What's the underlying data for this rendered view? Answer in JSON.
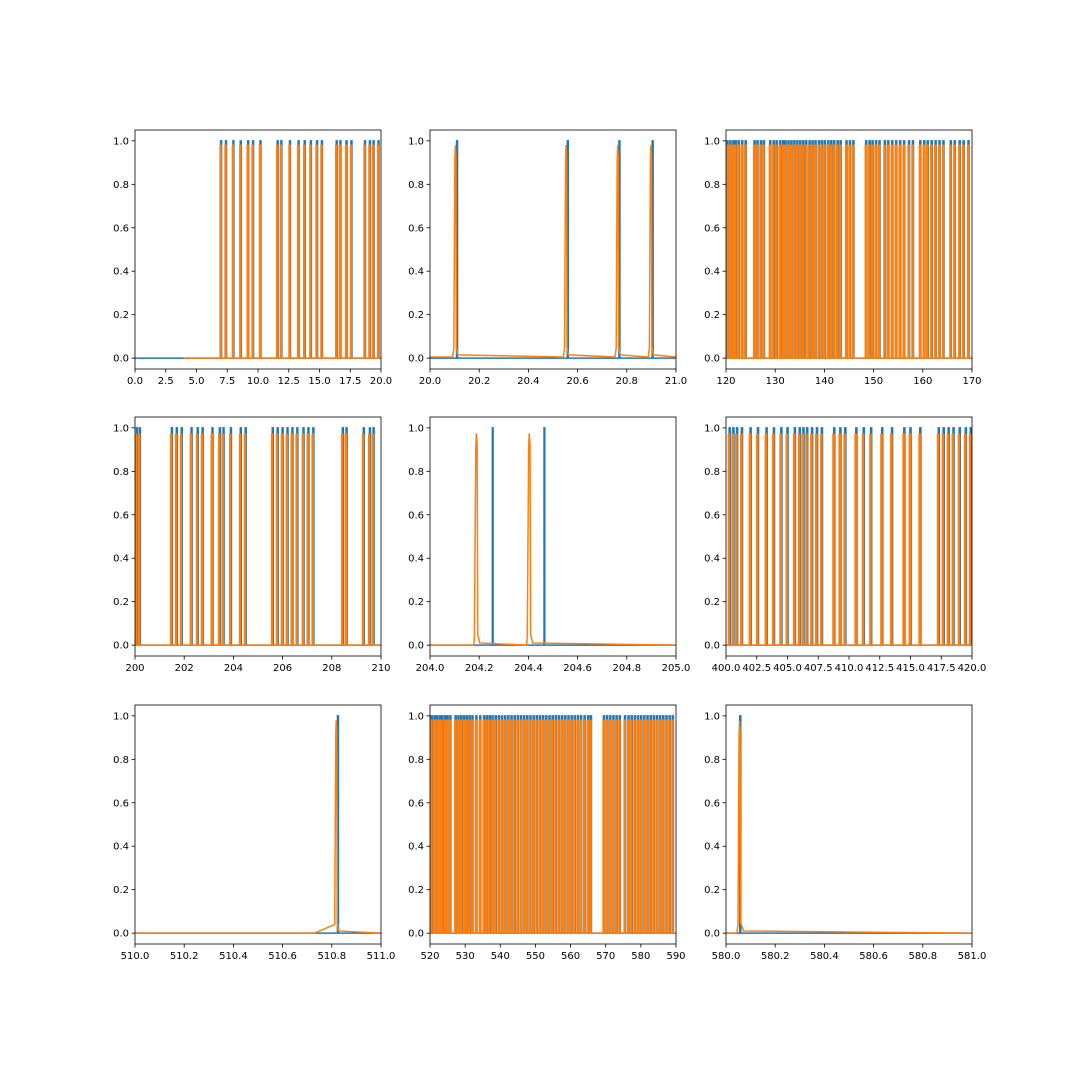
{
  "figure": {
    "series_colors": [
      "#1f77b4",
      "#ff7f0e"
    ]
  },
  "chart_data": [
    {
      "type": "line",
      "xlim": [
        0,
        20
      ],
      "ylim": [
        -0.05,
        1.05
      ],
      "x_ticks": [
        "0.0",
        "2.5",
        "5.0",
        "7.5",
        "10.0",
        "12.5",
        "15.0",
        "17.5",
        "20.0"
      ],
      "x_tick_values": [
        0,
        2.5,
        5,
        7.5,
        10,
        12.5,
        15,
        17.5,
        20
      ],
      "y_ticks": [
        "0.0",
        "0.2",
        "0.4",
        "0.6",
        "0.8",
        "1.0"
      ],
      "y_tick_values": [
        0,
        0.2,
        0.4,
        0.6,
        0.8,
        1.0
      ],
      "series": [
        {
          "color": "#1f77b4",
          "baseline": 0.0,
          "baseline_start": 0,
          "peak_height": 1.0,
          "peak_width": 0.08,
          "peaks": [
            7.0,
            7.4,
            8.0,
            8.6,
            9.2,
            9.6,
            10.2,
            11.6,
            11.9,
            12.6,
            13.3,
            13.8,
            14.3,
            14.8,
            15.2,
            16.4,
            16.7,
            17.2,
            17.6,
            18.7,
            19.1,
            19.4,
            19.8
          ]
        },
        {
          "color": "#ff7f0e",
          "baseline": 0.0,
          "baseline_start": 4.0,
          "peak_height": 0.98,
          "peak_width": 0.08,
          "peak_offset": -0.04,
          "peaks": [
            7.0,
            7.4,
            8.0,
            8.6,
            9.2,
            9.6,
            10.2,
            11.6,
            11.9,
            12.6,
            13.3,
            13.8,
            14.3,
            14.8,
            15.2,
            16.4,
            16.7,
            17.2,
            17.6,
            18.7,
            19.1,
            19.4,
            19.8
          ]
        }
      ]
    },
    {
      "type": "line",
      "xlim": [
        20.0,
        21.0
      ],
      "ylim": [
        -0.05,
        1.05
      ],
      "x_ticks": [
        "20.0",
        "20.2",
        "20.4",
        "20.6",
        "20.8",
        "21.0"
      ],
      "x_tick_values": [
        20.0,
        20.2,
        20.4,
        20.6,
        20.8,
        21.0
      ],
      "y_ticks": [
        "0.0",
        "0.2",
        "0.4",
        "0.6",
        "0.8",
        "1.0"
      ],
      "y_tick_values": [
        0,
        0.2,
        0.4,
        0.6,
        0.8,
        1.0
      ],
      "series": [
        {
          "color": "#1f77b4",
          "baseline": 0.0,
          "baseline_start": 20.0,
          "peak_height": 1.0,
          "peak_width": 0.004,
          "peaks": [
            20.11,
            20.56,
            20.77,
            20.905
          ]
        },
        {
          "color": "#ff7f0e",
          "baseline": 0.005,
          "baseline_start": 20.0,
          "peak_height": 0.98,
          "peak_width": 0.006,
          "peak_offset": -0.006,
          "skirt": true,
          "peaks": [
            20.11,
            20.56,
            20.77,
            20.905
          ]
        }
      ]
    },
    {
      "type": "line",
      "xlim": [
        120,
        170
      ],
      "ylim": [
        -0.05,
        1.05
      ],
      "x_ticks": [
        "120",
        "130",
        "140",
        "150",
        "160",
        "170"
      ],
      "x_tick_values": [
        120,
        130,
        140,
        150,
        160,
        170
      ],
      "y_ticks": [
        "0.0",
        "0.2",
        "0.4",
        "0.6",
        "0.8",
        "1.0"
      ],
      "y_tick_values": [
        0,
        0.2,
        0.4,
        0.6,
        0.8,
        1.0
      ],
      "series": [
        {
          "color": "#1f77b4",
          "baseline": 0.0,
          "baseline_start": 120,
          "peak_height": 1.0,
          "peak_width": 0.22,
          "peaks": [
            120.3,
            120.9,
            121.5,
            122.0,
            122.6,
            123.3,
            124.0,
            125.8,
            126.4,
            127.1,
            127.7,
            129.0,
            129.7,
            130.3,
            131.0,
            131.6,
            132.1,
            132.7,
            133.3,
            133.9,
            134.5,
            135.1,
            135.7,
            136.3,
            137.0,
            137.6,
            138.2,
            138.9,
            139.5,
            140.1,
            140.8,
            141.4,
            142.0,
            142.7,
            143.3,
            144.5,
            145.2,
            145.9,
            148.5,
            149.2,
            149.8,
            150.5,
            151.2,
            152.3,
            153.0,
            153.8,
            154.6,
            155.4,
            156.2,
            157.2,
            158.0,
            159.5,
            160.3,
            161.0,
            161.8,
            162.6,
            163.4,
            164.2,
            165.7,
            166.5,
            167.5,
            168.3,
            169.3
          ]
        },
        {
          "color": "#ff7f0e",
          "baseline": 0.0,
          "baseline_start": 120,
          "peak_height": 0.98,
          "peak_width": 0.22,
          "peak_offset": -0.08,
          "peaks": [
            120.3,
            120.9,
            121.5,
            122.0,
            122.6,
            123.3,
            124.0,
            125.8,
            126.4,
            127.1,
            127.7,
            129.0,
            129.7,
            130.3,
            131.0,
            131.6,
            132.1,
            132.7,
            133.3,
            133.9,
            134.5,
            135.1,
            135.7,
            136.3,
            137.0,
            137.6,
            138.2,
            138.9,
            139.5,
            140.1,
            140.8,
            141.4,
            142.0,
            142.7,
            143.3,
            144.5,
            145.2,
            145.9,
            148.5,
            149.2,
            149.8,
            150.5,
            151.2,
            152.3,
            153.0,
            153.8,
            154.6,
            155.4,
            156.2,
            157.2,
            158.0,
            159.5,
            160.3,
            161.0,
            161.8,
            162.6,
            163.4,
            164.2,
            165.7,
            166.5,
            167.5,
            168.3,
            169.3
          ]
        }
      ]
    },
    {
      "type": "line",
      "xlim": [
        200,
        210
      ],
      "ylim": [
        -0.05,
        1.05
      ],
      "x_ticks": [
        "200",
        "202",
        "204",
        "206",
        "208",
        "210"
      ],
      "x_tick_values": [
        200,
        202,
        204,
        206,
        208,
        210
      ],
      "y_ticks": [
        "0.0",
        "0.2",
        "0.4",
        "0.6",
        "0.8",
        "1.0"
      ],
      "y_tick_values": [
        0,
        0.2,
        0.4,
        0.6,
        0.8,
        1.0
      ],
      "series": [
        {
          "color": "#1f77b4",
          "baseline": 0.0,
          "baseline_start": 200,
          "peak_height": 1.0,
          "peak_width": 0.04,
          "peaks": [
            200.08,
            200.2,
            201.5,
            201.7,
            201.9,
            202.3,
            202.55,
            202.75,
            203.15,
            203.45,
            203.6,
            203.9,
            204.3,
            204.5,
            205.6,
            205.8,
            206.0,
            206.2,
            206.4,
            206.6,
            206.85,
            207.05,
            207.25,
            208.45,
            208.6,
            209.3,
            209.55,
            209.7
          ]
        },
        {
          "color": "#ff7f0e",
          "baseline": 0.0,
          "baseline_start": 200,
          "peak_height": 0.97,
          "peak_width": 0.04,
          "peak_offset": -0.03,
          "peaks": [
            200.08,
            200.2,
            201.5,
            201.7,
            201.9,
            202.3,
            202.55,
            202.75,
            203.15,
            203.45,
            203.6,
            203.9,
            204.3,
            204.5,
            205.6,
            205.8,
            206.0,
            206.2,
            206.4,
            206.6,
            206.85,
            207.05,
            207.25,
            208.45,
            208.6,
            209.3,
            209.55,
            209.7
          ]
        }
      ]
    },
    {
      "type": "line",
      "xlim": [
        204.0,
        205.0
      ],
      "ylim": [
        -0.05,
        1.05
      ],
      "x_ticks": [
        "204.0",
        "204.2",
        "204.4",
        "204.6",
        "204.8",
        "205.0"
      ],
      "x_tick_values": [
        204.0,
        204.2,
        204.4,
        204.6,
        204.8,
        205.0
      ],
      "y_ticks": [
        "0.0",
        "0.2",
        "0.4",
        "0.6",
        "0.8",
        "1.0"
      ],
      "y_tick_values": [
        0,
        0.2,
        0.4,
        0.6,
        0.8,
        1.0
      ],
      "series": [
        {
          "color": "#1f77b4",
          "baseline": 0.0,
          "baseline_start": 204.0,
          "peak_height": 1.0,
          "peak_width": 0.003,
          "peaks": [
            204.255,
            204.465
          ]
        },
        {
          "color": "#ff7f0e",
          "baseline": 0.0,
          "baseline_start": 204.0,
          "peak_height": 0.975,
          "peak_width": 0.008,
          "peak_offset": 0.0,
          "skirt": true,
          "peaks": [
            204.19,
            204.405
          ]
        }
      ]
    },
    {
      "type": "line",
      "xlim": [
        400,
        420
      ],
      "ylim": [
        -0.05,
        1.05
      ],
      "x_ticks": [
        "400.0",
        "402.5",
        "405.0",
        "407.5",
        "410.0",
        "412.5",
        "415.0",
        "417.5",
        "420.0"
      ],
      "x_tick_values": [
        400,
        402.5,
        405,
        407.5,
        410,
        412.5,
        415,
        417.5,
        420
      ],
      "y_ticks": [
        "0.0",
        "0.2",
        "0.4",
        "0.6",
        "0.8",
        "1.0"
      ],
      "y_tick_values": [
        0,
        0.2,
        0.4,
        0.6,
        0.8,
        1.0
      ],
      "series": [
        {
          "color": "#1f77b4",
          "baseline": 0.0,
          "baseline_start": 400,
          "peak_height": 1.0,
          "peak_width": 0.09,
          "peaks": [
            400.3,
            400.6,
            400.9,
            401.3,
            402.0,
            402.6,
            403.3,
            403.9,
            404.5,
            405.0,
            405.6,
            406.0,
            406.3,
            406.6,
            407.0,
            407.4,
            407.8,
            408.8,
            409.3,
            409.7,
            410.6,
            411.2,
            411.8,
            412.7,
            413.5,
            414.5,
            415.0,
            415.8,
            417.3,
            417.7,
            418.1,
            418.5,
            419.0,
            419.5,
            419.9
          ]
        },
        {
          "color": "#ff7f0e",
          "baseline": 0.0,
          "baseline_start": 400,
          "peak_height": 0.97,
          "peak_width": 0.09,
          "peak_offset": -0.06,
          "peaks": [
            400.3,
            400.6,
            400.9,
            401.3,
            402.0,
            402.6,
            403.3,
            403.9,
            404.5,
            405.0,
            405.6,
            406.0,
            406.3,
            406.6,
            407.0,
            407.4,
            407.8,
            408.8,
            409.3,
            409.7,
            410.6,
            411.2,
            411.8,
            412.7,
            413.5,
            414.5,
            415.0,
            415.8,
            417.3,
            417.7,
            418.1,
            418.5,
            419.0,
            419.5,
            419.9
          ]
        }
      ]
    },
    {
      "type": "line",
      "xlim": [
        510.0,
        511.0
      ],
      "ylim": [
        -0.05,
        1.05
      ],
      "x_ticks": [
        "510.0",
        "510.2",
        "510.4",
        "510.6",
        "510.8",
        "511.0"
      ],
      "x_tick_values": [
        510.0,
        510.2,
        510.4,
        510.6,
        510.8,
        511.0
      ],
      "y_ticks": [
        "0.0",
        "0.2",
        "0.4",
        "0.6",
        "0.8",
        "1.0"
      ],
      "y_tick_values": [
        0,
        0.2,
        0.4,
        0.6,
        0.8,
        1.0
      ],
      "series": [
        {
          "color": "#1f77b4",
          "baseline": 0.0,
          "baseline_start": 510.0,
          "peak_height": 1.0,
          "peak_width": 0.004,
          "peaks": [
            510.825
          ]
        },
        {
          "color": "#ff7f0e",
          "baseline": 0.0,
          "baseline_start": 510.0,
          "peak_height": 0.98,
          "peak_width": 0.006,
          "peak_offset": -0.006,
          "skirt": true,
          "wide_skirt": true,
          "peaks": [
            510.825
          ]
        }
      ]
    },
    {
      "type": "line",
      "xlim": [
        520,
        590
      ],
      "ylim": [
        -0.05,
        1.05
      ],
      "x_ticks": [
        "520",
        "530",
        "540",
        "550",
        "560",
        "570",
        "580",
        "590"
      ],
      "x_tick_values": [
        520,
        530,
        540,
        550,
        560,
        570,
        580,
        590
      ],
      "y_ticks": [
        "0.0",
        "0.2",
        "0.4",
        "0.6",
        "0.8",
        "1.0"
      ],
      "y_tick_values": [
        0,
        0.2,
        0.4,
        0.6,
        0.8,
        1.0
      ],
      "series": [
        {
          "color": "#1f77b4",
          "baseline": 0.0,
          "baseline_start": 520,
          "peak_height": 1.0,
          "peak_width": 0.3,
          "peaks": [
            520.5,
            521.3,
            522.0,
            522.8,
            523.5,
            524.3,
            525.0,
            525.8,
            527.3,
            528.1,
            528.9,
            529.7,
            530.5,
            531.3,
            532.1,
            533.2,
            534.3,
            535.4,
            536.2,
            537.0,
            537.8,
            538.7,
            539.6,
            540.5,
            541.4,
            542.3,
            543.2,
            544.1,
            545.0,
            545.9,
            546.8,
            547.7,
            548.6,
            549.5,
            550.4,
            551.3,
            552.2,
            553.1,
            554.0,
            554.9,
            555.8,
            556.7,
            557.6,
            558.5,
            559.4,
            560.3,
            561.2,
            562.1,
            563.0,
            564.0,
            565.0,
            565.8,
            569.5,
            570.4,
            571.3,
            572.2,
            573.1,
            574.0,
            575.5,
            576.5,
            577.4,
            578.3,
            579.2,
            580.1,
            581.0,
            581.9,
            582.8,
            583.7,
            584.6,
            585.5,
            586.4,
            587.3,
            588.2,
            589.1
          ]
        },
        {
          "color": "#ff7f0e",
          "baseline": 0.0,
          "baseline_start": 520,
          "peak_height": 0.98,
          "peak_width": 0.3,
          "peak_offset": -0.1,
          "peaks": [
            520.5,
            521.3,
            522.0,
            522.8,
            523.5,
            524.3,
            525.0,
            525.8,
            527.3,
            528.1,
            528.9,
            529.7,
            530.5,
            531.3,
            532.1,
            533.2,
            534.3,
            535.4,
            536.2,
            537.0,
            537.8,
            538.7,
            539.6,
            540.5,
            541.4,
            542.3,
            543.2,
            544.1,
            545.0,
            545.9,
            546.8,
            547.7,
            548.6,
            549.5,
            550.4,
            551.3,
            552.2,
            553.1,
            554.0,
            554.9,
            555.8,
            556.7,
            557.6,
            558.5,
            559.4,
            560.3,
            561.2,
            562.1,
            563.0,
            564.0,
            565.0,
            565.8,
            569.5,
            570.4,
            571.3,
            572.2,
            573.1,
            574.0,
            575.5,
            576.5,
            577.4,
            578.3,
            579.2,
            580.1,
            581.0,
            581.9,
            582.8,
            583.7,
            584.6,
            585.5,
            586.4,
            587.3,
            588.2,
            589.1
          ]
        }
      ]
    },
    {
      "type": "line",
      "xlim": [
        580.0,
        581.0
      ],
      "ylim": [
        -0.05,
        1.05
      ],
      "x_ticks": [
        "580.0",
        "580.2",
        "580.4",
        "580.6",
        "580.8",
        "581.0"
      ],
      "x_tick_values": [
        580.0,
        580.2,
        580.4,
        580.6,
        580.8,
        581.0
      ],
      "y_ticks": [
        "0.0",
        "0.2",
        "0.4",
        "0.6",
        "0.8",
        "1.0"
      ],
      "y_tick_values": [
        0,
        0.2,
        0.4,
        0.6,
        0.8,
        1.0
      ],
      "series": [
        {
          "color": "#1f77b4",
          "baseline": 0.0,
          "baseline_start": 580.0,
          "peak_height": 1.0,
          "peak_width": 0.004,
          "peaks": [
            580.058
          ]
        },
        {
          "color": "#ff7f0e",
          "baseline": 0.0,
          "baseline_start": 580.0,
          "peak_height": 0.975,
          "peak_width": 0.006,
          "peak_offset": -0.002,
          "skirt": true,
          "tail_right": true,
          "peaks": [
            580.058
          ]
        }
      ]
    }
  ]
}
